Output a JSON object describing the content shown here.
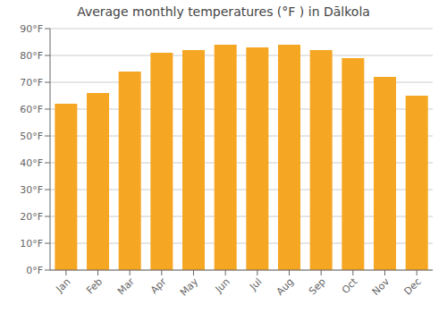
{
  "chart_data": {
    "type": "bar",
    "title": "Average monthly temperatures (°F ) in Dālkola",
    "categories": [
      "Jan",
      "Feb",
      "Mar",
      "Apr",
      "May",
      "Jun",
      "Jul",
      "Aug",
      "Sep",
      "Oct",
      "Nov",
      "Dec"
    ],
    "values": [
      62,
      66,
      74,
      81,
      82,
      84,
      83,
      84,
      82,
      79,
      72,
      65
    ],
    "color": "#F5A623",
    "ylim": [
      0,
      90
    ],
    "yticks": [
      {
        "value": 0,
        "label": "0°F"
      },
      {
        "value": 10,
        "label": "10°F"
      },
      {
        "value": 20,
        "label": "20°F"
      },
      {
        "value": 30,
        "label": "30°F"
      },
      {
        "value": 40,
        "label": "40°F"
      },
      {
        "value": 50,
        "label": "50°F"
      },
      {
        "value": 60,
        "label": "60°F"
      },
      {
        "value": 70,
        "label": "70°F"
      },
      {
        "value": 80,
        "label": "80°F"
      },
      {
        "value": 90,
        "label": "90°F"
      }
    ],
    "grid": true
  }
}
